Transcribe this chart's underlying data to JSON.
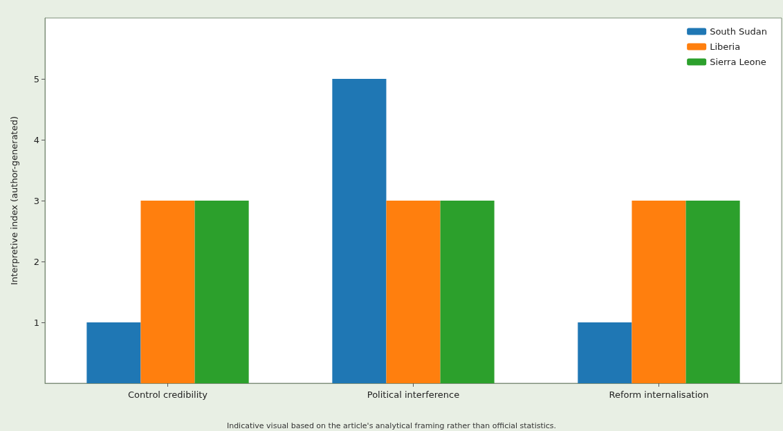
{
  "chart_data": {
    "type": "bar",
    "ylabel": "Interpretive index (author-generated)",
    "categories": [
      "Control credibility",
      "Political interference",
      "Reform internalisation"
    ],
    "series": [
      {
        "name": "South Sudan",
        "color": "#1f77b4",
        "values": [
          1,
          5,
          1
        ]
      },
      {
        "name": "Liberia",
        "color": "#ff7f0e",
        "values": [
          3,
          3,
          3
        ]
      },
      {
        "name": "Sierra Leone",
        "color": "#2ca02c",
        "values": [
          3,
          3,
          3
        ]
      }
    ],
    "ylim": [
      0,
      6
    ],
    "yticks": [
      1,
      2,
      3,
      4,
      5
    ],
    "legend": "top right",
    "grid": false,
    "annotations": [
      "Indicative visual based on the article's analytical framing rather than official statistics."
    ]
  }
}
